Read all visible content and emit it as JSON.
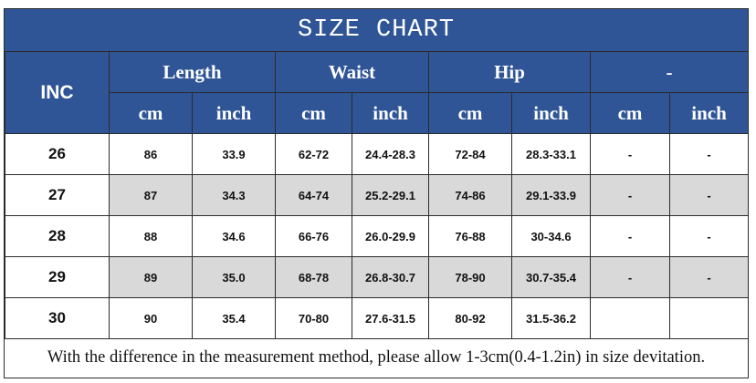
{
  "title": "SIZE CHART",
  "header": {
    "first_column": "INC",
    "groups": [
      "Length",
      "Waist",
      "Hip",
      "-"
    ],
    "units": [
      "cm",
      "inch",
      "cm",
      "inch",
      "cm",
      "inch",
      "cm",
      "inch"
    ]
  },
  "rows": [
    {
      "inc": "26",
      "cells": [
        "86",
        "33.9",
        "62-72",
        "24.4-28.3",
        "72-84",
        "28.3-33.1",
        "-",
        "-"
      ]
    },
    {
      "inc": "27",
      "cells": [
        "87",
        "34.3",
        "64-74",
        "25.2-29.1",
        "74-86",
        "29.1-33.9",
        "-",
        "-"
      ]
    },
    {
      "inc": "28",
      "cells": [
        "88",
        "34.6",
        "66-76",
        "26.0-29.9",
        "76-88",
        "30-34.6",
        "-",
        "-"
      ]
    },
    {
      "inc": "29",
      "cells": [
        "89",
        "35.0",
        "68-78",
        "26.8-30.7",
        "78-90",
        "30.7-35.4",
        "-",
        "-"
      ]
    },
    {
      "inc": "30",
      "cells": [
        "90",
        "35.4",
        "70-80",
        "27.6-31.5",
        "80-92",
        "31.5-36.2",
        "",
        ""
      ]
    }
  ],
  "note": "With the difference in the measurement method, please allow 1-3cm(0.4-1.2in) in size devitation.",
  "colors": {
    "header_bg": "#2f5597",
    "alt_row_bg": "#d9d9d9"
  }
}
